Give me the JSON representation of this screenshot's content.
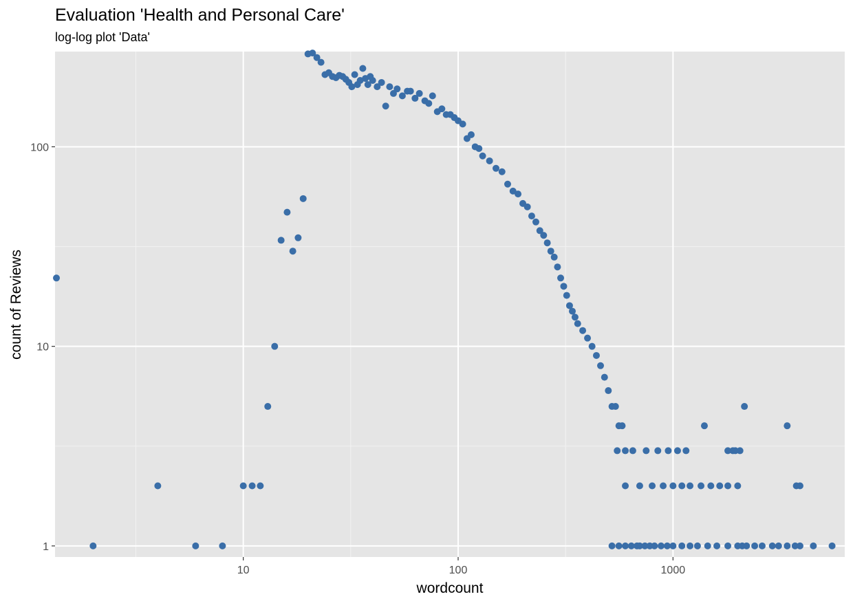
{
  "chart_data": {
    "type": "scatter",
    "title": "Evaluation 'Health and Personal Care'",
    "subtitle": "log-log plot 'Data'",
    "xlabel": "wordcount",
    "ylabel": "count of Reviews",
    "x_scale": "log10",
    "y_scale": "log10",
    "xlim": [
      1.33,
      6300
    ],
    "ylim": [
      0.88,
      300
    ],
    "x_ticks": [
      10,
      100,
      1000
    ],
    "x_tick_labels": [
      "10",
      "100",
      "1000"
    ],
    "y_ticks": [
      1,
      10,
      100
    ],
    "y_tick_labels": [
      "1",
      "10",
      "100"
    ],
    "grid": true,
    "legend": "none",
    "colors": {
      "point": "#3a6ea8",
      "panel": "#e5e5e5",
      "grid": "#ffffff"
    },
    "series": [
      {
        "x": [
          1.35,
          2,
          4,
          6,
          8,
          10,
          11,
          12,
          13,
          14,
          15,
          16,
          17,
          18,
          19,
          20,
          21,
          22,
          23,
          24,
          25,
          26,
          27,
          28,
          29,
          30,
          31,
          32,
          33,
          34,
          35,
          36,
          37,
          38,
          39,
          40,
          42,
          44,
          46,
          48,
          50,
          52,
          55,
          58,
          60,
          63,
          66,
          70,
          73,
          76,
          80,
          84,
          88,
          92,
          96,
          100,
          105,
          110,
          115,
          120,
          125,
          130,
          140,
          150,
          160,
          170,
          180,
          190,
          200,
          210,
          220,
          230,
          240,
          250,
          260,
          270,
          280,
          290,
          300,
          310,
          320,
          330,
          340,
          350,
          360,
          380,
          400,
          420,
          440,
          460,
          480,
          500,
          520,
          540,
          560,
          580,
          600,
          520,
          560,
          600,
          640,
          680,
          700,
          740,
          780,
          820,
          880,
          940,
          1000,
          1100,
          1200,
          1300,
          1450,
          1600,
          1800,
          2000,
          600,
          700,
          800,
          900,
          1000,
          1100,
          1200,
          1350,
          1500,
          1650,
          1800,
          2000,
          2100,
          2200,
          2400,
          2600,
          2900,
          3100,
          3400,
          3700,
          3900,
          4500,
          5500,
          550,
          650,
          750,
          850,
          950,
          1050,
          1150,
          1400,
          1900,
          2050,
          3750,
          3900,
          2150,
          3400,
          1800,
          1950
        ],
        "y": [
          22,
          1,
          2,
          1,
          1,
          2,
          2,
          2,
          5,
          10,
          34,
          47,
          30,
          35,
          55,
          292,
          295,
          280,
          265,
          230,
          235,
          225,
          222,
          228,
          225,
          218,
          210,
          200,
          230,
          205,
          215,
          247,
          220,
          205,
          225,
          215,
          200,
          210,
          160,
          200,
          185,
          195,
          180,
          190,
          190,
          175,
          185,
          170,
          165,
          180,
          150,
          155,
          145,
          145,
          140,
          135,
          130,
          110,
          115,
          100,
          98,
          90,
          85,
          78,
          75,
          65,
          60,
          58,
          52,
          50,
          45,
          42,
          38,
          36,
          33,
          30,
          28,
          25,
          22,
          20,
          18,
          16,
          15,
          14,
          13,
          12,
          11,
          10,
          9,
          8,
          7,
          6,
          5,
          5,
          4,
          4,
          3,
          1,
          1,
          1,
          1,
          1,
          1,
          1,
          1,
          1,
          1,
          1,
          1,
          1,
          1,
          1,
          1,
          1,
          1,
          1,
          2,
          2,
          2,
          2,
          2,
          2,
          2,
          2,
          2,
          2,
          2,
          2,
          1,
          1,
          1,
          1,
          1,
          1,
          1,
          1,
          1,
          1,
          1,
          3,
          3,
          3,
          3,
          3,
          3,
          3,
          4,
          3,
          3,
          2,
          2,
          5,
          4,
          3,
          3
        ]
      }
    ]
  }
}
